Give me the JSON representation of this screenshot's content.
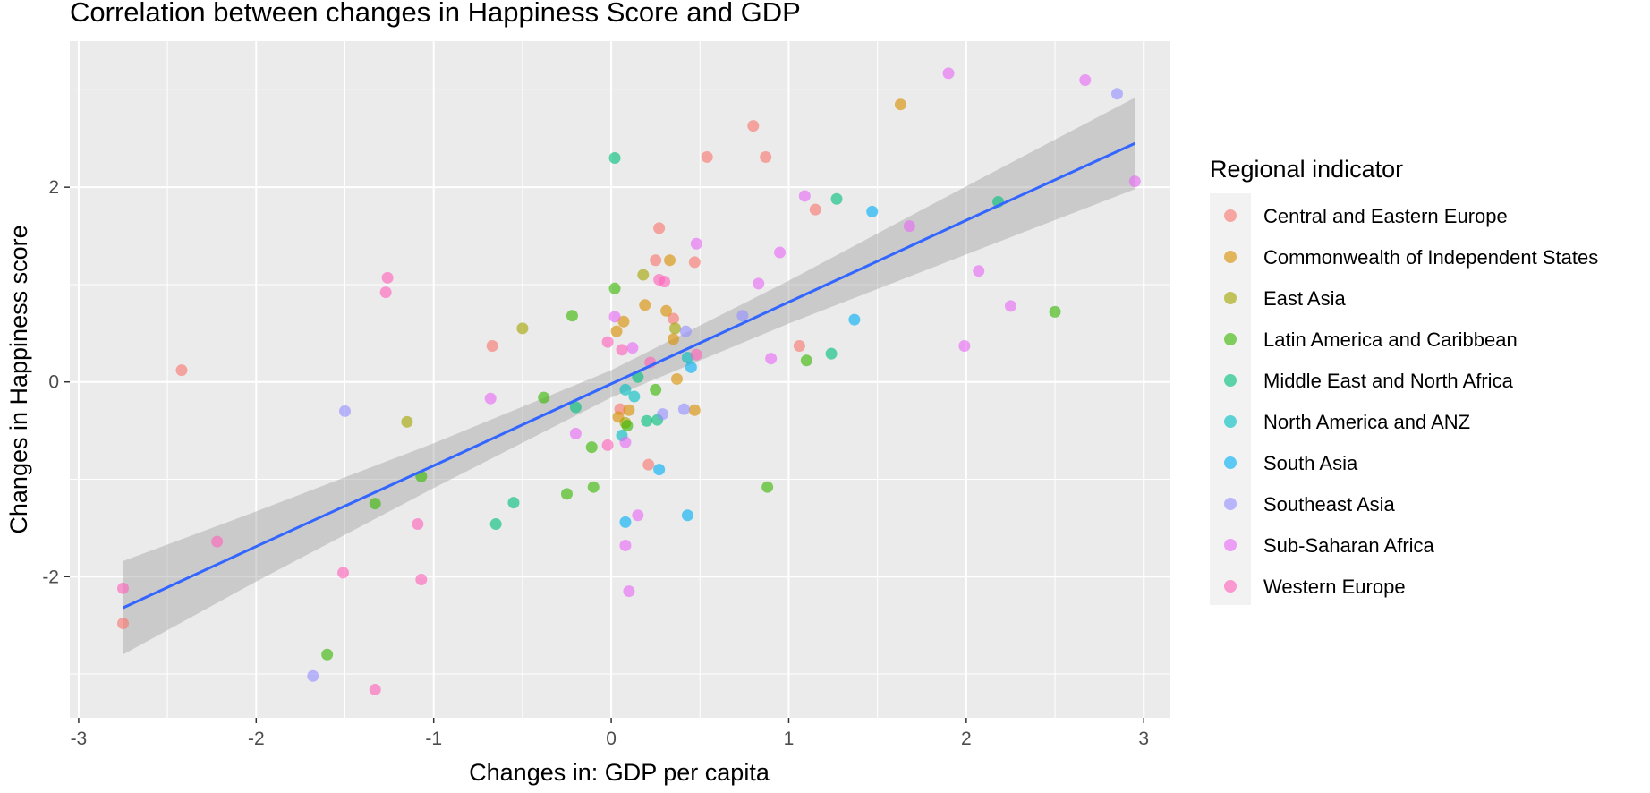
{
  "chart_data": {
    "type": "scatter",
    "title": "Correlation between changes in Happiness Score and GDP",
    "xlabel": "Changes in: GDP per capita",
    "ylabel": "Changes in Happiness score",
    "xlim": [
      -3.05,
      3.15
    ],
    "ylim": [
      -3.45,
      3.5
    ],
    "x_ticks": [
      -3,
      -2,
      -1,
      0,
      1,
      2,
      3
    ],
    "y_ticks": [
      -2,
      0,
      2
    ],
    "grid": true,
    "legend": {
      "title": "Regional indicator",
      "placement": "right",
      "entries": [
        {
          "name": "Central and Eastern Europe",
          "color": "#F8766D"
        },
        {
          "name": "Commonwealth of Independent States",
          "color": "#D89000"
        },
        {
          "name": "East Asia",
          "color": "#A3A500"
        },
        {
          "name": "Latin America and Caribbean",
          "color": "#39B600"
        },
        {
          "name": "Middle East and North Africa",
          "color": "#00BF7D"
        },
        {
          "name": "North America and ANZ",
          "color": "#00BFC4"
        },
        {
          "name": "South Asia",
          "color": "#00B0F6"
        },
        {
          "name": "Southeast Asia",
          "color": "#9590FF"
        },
        {
          "name": "Sub-Saharan Africa",
          "color": "#E76BF3"
        },
        {
          "name": "Western Europe",
          "color": "#FF62BC"
        }
      ]
    },
    "fit_line": {
      "color": "#3366FF",
      "band_color": "#999999",
      "points": [
        {
          "x": -2.75,
          "y": -2.32,
          "lo": -2.8,
          "hi": -1.84
        },
        {
          "x": -2.0,
          "y": -1.69,
          "lo": -2.05,
          "hi": -1.33
        },
        {
          "x": -1.0,
          "y": -0.86,
          "lo": -1.09,
          "hi": -0.63
        },
        {
          "x": 0.0,
          "y": -0.02,
          "lo": -0.16,
          "hi": 0.12
        },
        {
          "x": 1.0,
          "y": 0.82,
          "lo": 0.6,
          "hi": 1.04
        },
        {
          "x": 2.0,
          "y": 1.66,
          "lo": 1.31,
          "hi": 2.01
        },
        {
          "x": 2.95,
          "y": 2.45,
          "lo": 1.98,
          "hi": 2.92
        }
      ]
    },
    "series": [
      {
        "name": "Central and Eastern Europe",
        "points": [
          {
            "x": -2.42,
            "y": 0.12
          },
          {
            "x": -2.75,
            "y": -2.48
          },
          {
            "x": -0.67,
            "y": 0.37
          },
          {
            "x": 0.8,
            "y": 2.63
          },
          {
            "x": 0.87,
            "y": 2.31
          },
          {
            "x": 0.54,
            "y": 2.31
          },
          {
            "x": 0.27,
            "y": 1.58
          },
          {
            "x": 0.25,
            "y": 1.25
          },
          {
            "x": 0.47,
            "y": 1.23
          },
          {
            "x": 1.15,
            "y": 1.77
          },
          {
            "x": 1.06,
            "y": 0.37
          },
          {
            "x": 0.21,
            "y": -0.85
          },
          {
            "x": 0.05,
            "y": -0.28
          },
          {
            "x": 0.35,
            "y": 0.65
          }
        ]
      },
      {
        "name": "Commonwealth of Independent States",
        "points": [
          {
            "x": 1.63,
            "y": 2.85
          },
          {
            "x": 0.33,
            "y": 1.25
          },
          {
            "x": 0.19,
            "y": 0.79
          },
          {
            "x": 0.07,
            "y": 0.62
          },
          {
            "x": 0.35,
            "y": 0.44
          },
          {
            "x": 0.47,
            "y": -0.29
          },
          {
            "x": 0.37,
            "y": 0.03
          },
          {
            "x": 0.04,
            "y": -0.36
          },
          {
            "x": 0.1,
            "y": -0.29
          },
          {
            "x": 0.31,
            "y": 0.73
          },
          {
            "x": 0.03,
            "y": 0.52
          }
        ]
      },
      {
        "name": "East Asia",
        "points": [
          {
            "x": -0.5,
            "y": 0.55
          },
          {
            "x": -1.15,
            "y": -0.41
          },
          {
            "x": 0.18,
            "y": 1.1
          },
          {
            "x": 0.36,
            "y": 0.55
          },
          {
            "x": 0.08,
            "y": -0.42
          }
        ]
      },
      {
        "name": "Latin America and Caribbean",
        "points": [
          {
            "x": -1.6,
            "y": -2.8
          },
          {
            "x": -1.33,
            "y": -1.25
          },
          {
            "x": -1.07,
            "y": -0.97
          },
          {
            "x": -0.38,
            "y": -0.16
          },
          {
            "x": -0.22,
            "y": 0.68
          },
          {
            "x": 0.02,
            "y": 0.96
          },
          {
            "x": -0.1,
            "y": -1.08
          },
          {
            "x": -0.25,
            "y": -1.15
          },
          {
            "x": 0.88,
            "y": -1.08
          },
          {
            "x": 1.1,
            "y": 0.22
          },
          {
            "x": 2.5,
            "y": 0.72
          },
          {
            "x": 0.09,
            "y": -0.45
          },
          {
            "x": 0.25,
            "y": -0.08
          },
          {
            "x": -0.11,
            "y": -0.67
          }
        ]
      },
      {
        "name": "Middle East and North Africa",
        "points": [
          {
            "x": 0.02,
            "y": 2.3
          },
          {
            "x": 1.27,
            "y": 1.88
          },
          {
            "x": 2.18,
            "y": 1.85
          },
          {
            "x": 1.24,
            "y": 0.29
          },
          {
            "x": -0.65,
            "y": -1.46
          },
          {
            "x": -0.55,
            "y": -1.24
          },
          {
            "x": -0.2,
            "y": -0.26
          },
          {
            "x": 0.2,
            "y": -0.4
          },
          {
            "x": 0.15,
            "y": 0.05
          },
          {
            "x": 0.26,
            "y": -0.39
          }
        ]
      },
      {
        "name": "North America and ANZ",
        "points": [
          {
            "x": 0.08,
            "y": -0.08
          },
          {
            "x": 0.13,
            "y": -0.15
          },
          {
            "x": 0.43,
            "y": 0.25
          },
          {
            "x": 0.06,
            "y": -0.55
          }
        ]
      },
      {
        "name": "South Asia",
        "points": [
          {
            "x": 1.47,
            "y": 1.75
          },
          {
            "x": 1.37,
            "y": 0.64
          },
          {
            "x": 0.45,
            "y": 0.15
          },
          {
            "x": 0.27,
            "y": -0.9
          },
          {
            "x": 0.08,
            "y": -1.44
          },
          {
            "x": 0.43,
            "y": -1.37
          }
        ]
      },
      {
        "name": "Southeast Asia",
        "points": [
          {
            "x": 2.85,
            "y": 2.96
          },
          {
            "x": -1.5,
            "y": -0.3
          },
          {
            "x": -1.68,
            "y": -3.02
          },
          {
            "x": 0.74,
            "y": 0.68
          },
          {
            "x": 0.42,
            "y": 0.52
          },
          {
            "x": 0.41,
            "y": -0.28
          },
          {
            "x": 0.29,
            "y": -0.33
          }
        ]
      },
      {
        "name": "Sub-Saharan Africa",
        "points": [
          {
            "x": 1.9,
            "y": 3.17
          },
          {
            "x": 2.67,
            "y": 3.1
          },
          {
            "x": 2.95,
            "y": 2.06
          },
          {
            "x": 1.09,
            "y": 1.91
          },
          {
            "x": 1.68,
            "y": 1.6
          },
          {
            "x": 0.95,
            "y": 1.33
          },
          {
            "x": 0.83,
            "y": 1.01
          },
          {
            "x": 2.07,
            "y": 1.14
          },
          {
            "x": 2.25,
            "y": 0.78
          },
          {
            "x": 1.99,
            "y": 0.37
          },
          {
            "x": 0.9,
            "y": 0.24
          },
          {
            "x": 0.48,
            "y": 1.42
          },
          {
            "x": -0.68,
            "y": -0.17
          },
          {
            "x": 0.08,
            "y": -1.68
          },
          {
            "x": 0.1,
            "y": -2.15
          },
          {
            "x": 0.15,
            "y": -1.37
          },
          {
            "x": -0.2,
            "y": -0.53
          },
          {
            "x": 0.08,
            "y": -0.62
          },
          {
            "x": 0.02,
            "y": 0.67
          },
          {
            "x": 0.12,
            "y": 0.35
          }
        ]
      },
      {
        "name": "Western Europe",
        "points": [
          {
            "x": -1.26,
            "y": 1.07
          },
          {
            "x": -1.27,
            "y": 0.92
          },
          {
            "x": -2.75,
            "y": -2.12
          },
          {
            "x": -2.22,
            "y": -1.64
          },
          {
            "x": -1.51,
            "y": -1.96
          },
          {
            "x": -1.09,
            "y": -1.46
          },
          {
            "x": -1.07,
            "y": -2.03
          },
          {
            "x": -1.33,
            "y": -3.16
          },
          {
            "x": -0.02,
            "y": -0.65
          },
          {
            "x": 0.06,
            "y": 0.33
          },
          {
            "x": 0.3,
            "y": 1.03
          },
          {
            "x": 0.27,
            "y": 1.05
          },
          {
            "x": 0.48,
            "y": 0.28
          },
          {
            "x": 0.22,
            "y": 0.2
          },
          {
            "x": -0.02,
            "y": 0.41
          }
        ]
      }
    ]
  }
}
